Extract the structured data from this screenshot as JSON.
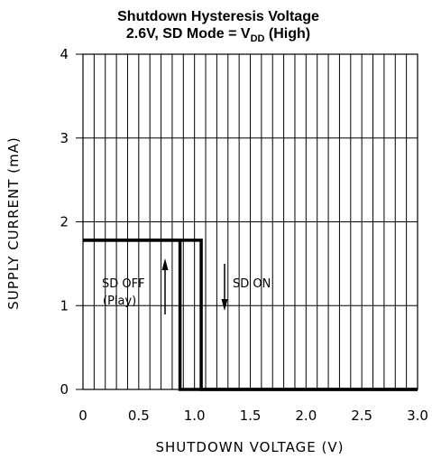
{
  "chart_data": {
    "type": "line",
    "title_line1": "Shutdown Hysteresis Voltage",
    "title_line2_prefix": "2.6V, SD Mode = V",
    "title_line2_sub": "DD",
    "title_line2_suffix": " (High)",
    "xlabel": "SHUTDOWN VOLTAGE (V)",
    "ylabel": "SUPPLY CURRENT (mA)",
    "xlim": [
      0,
      3.0
    ],
    "ylim": [
      0,
      4
    ],
    "x_ticks": [
      {
        "value": 0,
        "label": "0"
      },
      {
        "value": 0.5,
        "label": "0.5"
      },
      {
        "value": 1.0,
        "label": "1.0"
      },
      {
        "value": 1.5,
        "label": "1.5"
      },
      {
        "value": 2.0,
        "label": "2.0"
      },
      {
        "value": 2.5,
        "label": "2.5"
      },
      {
        "value": 3.0,
        "label": "3.0"
      }
    ],
    "y_ticks": [
      {
        "value": 0,
        "label": "0"
      },
      {
        "value": 1,
        "label": "1"
      },
      {
        "value": 2,
        "label": "2"
      },
      {
        "value": 3,
        "label": "3"
      },
      {
        "value": 4,
        "label": "4"
      }
    ],
    "grid": true,
    "x_minor_step": 0.1,
    "series": [
      {
        "x": [
          0,
          0.87,
          0.87,
          3.0
        ],
        "y": [
          1.78,
          1.78,
          0,
          0
        ]
      },
      {
        "x": [
          0,
          1.06,
          1.06,
          3.0
        ],
        "y": [
          1.78,
          1.78,
          0,
          0
        ]
      }
    ],
    "annotations": {
      "sd_off": "SD OFF",
      "play": "(Play)",
      "sd_on": "SD ON"
    }
  }
}
